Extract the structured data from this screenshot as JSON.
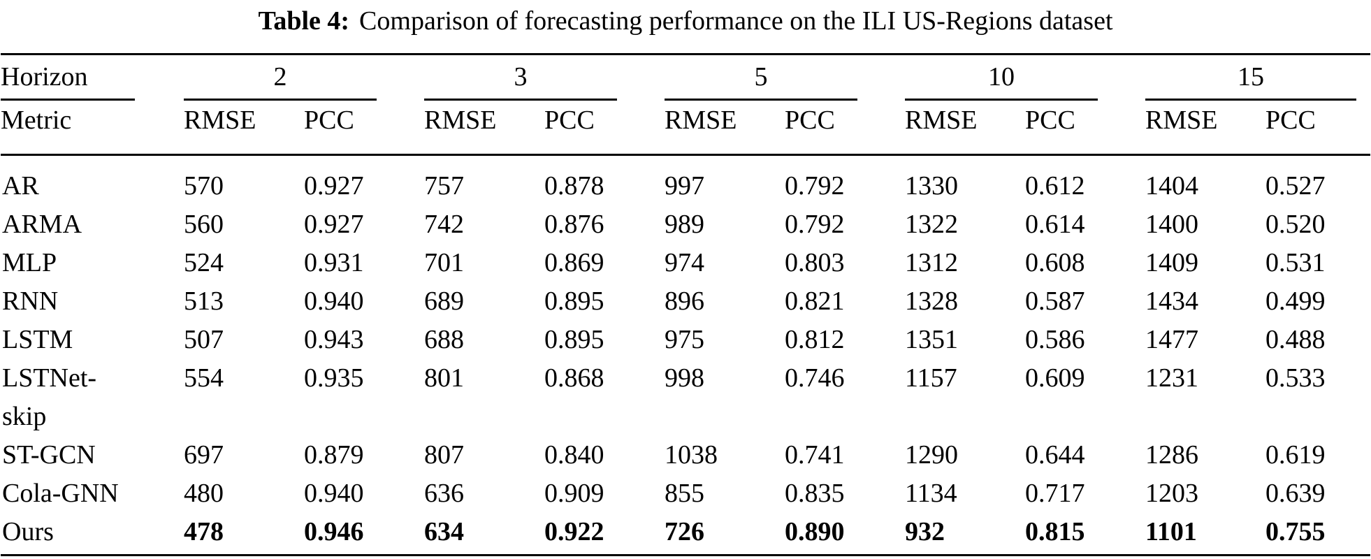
{
  "title": {
    "label": "Table 4:",
    "text": "Comparison of forecasting performance on the ILI US-Regions dataset"
  },
  "table": {
    "horizon_label": "Horizon",
    "metric_label": "Metric",
    "horizons": [
      "2",
      "3",
      "5",
      "10",
      "15"
    ],
    "rmse_label": "RMSE",
    "pcc_label": "PCC",
    "rows": [
      {
        "model": "AR",
        "best": false,
        "values": [
          "570",
          "0.927",
          "757",
          "0.878",
          "997",
          "0.792",
          "1330",
          "0.612",
          "1404",
          "0.527"
        ]
      },
      {
        "model": "ARMA",
        "best": false,
        "values": [
          "560",
          "0.927",
          "742",
          "0.876",
          "989",
          "0.792",
          "1322",
          "0.614",
          "1400",
          "0.520"
        ]
      },
      {
        "model": "MLP",
        "best": false,
        "values": [
          "524",
          "0.931",
          "701",
          "0.869",
          "974",
          "0.803",
          "1312",
          "0.608",
          "1409",
          "0.531"
        ]
      },
      {
        "model": "RNN",
        "best": false,
        "values": [
          "513",
          "0.940",
          "689",
          "0.895",
          "896",
          "0.821",
          "1328",
          "0.587",
          "1434",
          "0.499"
        ]
      },
      {
        "model": "LSTM",
        "best": false,
        "values": [
          "507",
          "0.943",
          "688",
          "0.895",
          "975",
          "0.812",
          "1351",
          "0.586",
          "1477",
          "0.488"
        ]
      },
      {
        "model": "LSTNet-skip",
        "best": false,
        "values": [
          "554",
          "0.935",
          "801",
          "0.868",
          "998",
          "0.746",
          "1157",
          "0.609",
          "1231",
          "0.533"
        ]
      },
      {
        "model": "ST-GCN",
        "best": false,
        "values": [
          "697",
          "0.879",
          "807",
          "0.840",
          "1038",
          "0.741",
          "1290",
          "0.644",
          "1286",
          "0.619"
        ]
      },
      {
        "model": "Cola-GNN",
        "best": false,
        "values": [
          "480",
          "0.940",
          "636",
          "0.909",
          "855",
          "0.835",
          "1134",
          "0.717",
          "1203",
          "0.639"
        ]
      },
      {
        "model": "Ours",
        "best": true,
        "values": [
          "478",
          "0.946",
          "634",
          "0.922",
          "726",
          "0.890",
          "932",
          "0.815",
          "1101",
          "0.755"
        ]
      }
    ]
  },
  "colors": {
    "text": "#000000",
    "background": "#ffffff",
    "rule": "#000000"
  }
}
